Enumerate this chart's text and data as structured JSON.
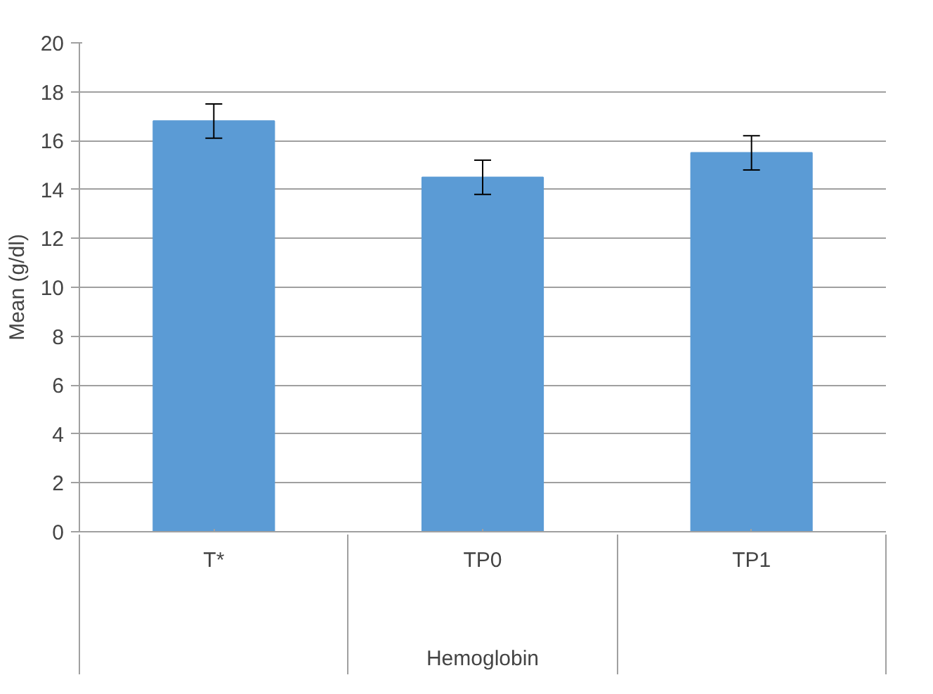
{
  "chart_data": {
    "type": "bar",
    "categories": [
      "T*",
      "TP0",
      "TP1"
    ],
    "values": [
      16.8,
      14.5,
      15.5
    ],
    "errors": [
      0.7,
      0.7,
      0.7
    ],
    "color": "#5b9bd5",
    "ylabel": "Mean (g/dl)",
    "xlabel": "Hemoglobin",
    "ylim": [
      0,
      20
    ],
    "yticks": [
      0,
      2,
      4,
      6,
      8,
      10,
      12,
      14,
      16,
      18,
      20
    ],
    "grid": "y"
  }
}
